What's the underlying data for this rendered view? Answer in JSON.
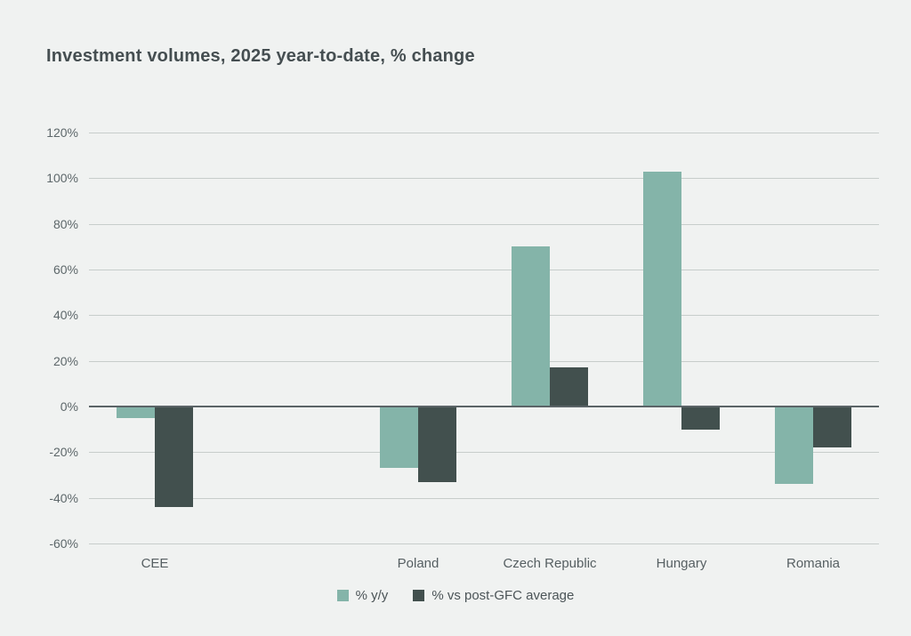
{
  "title": "Investment volumes, 2025 year-to-date, % change",
  "colors": {
    "background": "#f0f2f1",
    "gridline": "#c7cdcb",
    "zero_line": "#5b6467",
    "title_text": "#454e51",
    "axis_text": "#5d676a",
    "series_yoy": "#84b4a9",
    "series_postgfc": "#42504e"
  },
  "chart_data": {
    "type": "bar",
    "title": "Investment volumes, 2025 year-to-date, % change",
    "categories": [
      "CEE",
      "Poland",
      "Czech Republic",
      "Hungary",
      "Romania"
    ],
    "category_slots": [
      0,
      2,
      3,
      4,
      5
    ],
    "total_slots": 6,
    "series": [
      {
        "name": "% y/y",
        "color": "#84b4a9",
        "values": [
          -5,
          -27,
          70,
          103,
          -34
        ]
      },
      {
        "name": "% vs post-GFC average",
        "color": "#42504e",
        "values": [
          -44,
          -33,
          17,
          -10,
          -18
        ]
      }
    ],
    "ylim": [
      -60,
      120
    ],
    "yticks": [
      120,
      100,
      80,
      60,
      40,
      20,
      0,
      -20,
      -40,
      -60
    ],
    "ytick_suffix": "%",
    "xlabel": "",
    "ylabel": "",
    "grid": true,
    "legend_position": "bottom"
  }
}
